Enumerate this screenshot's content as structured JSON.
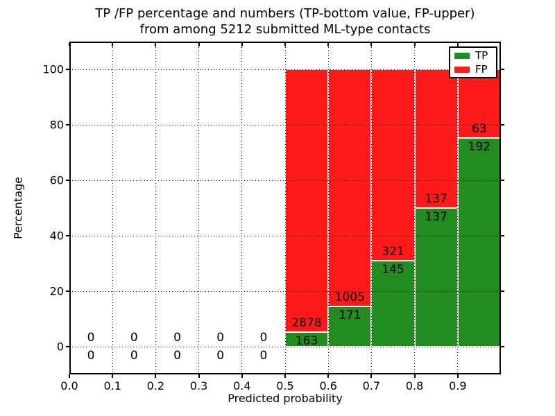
{
  "figure": {
    "title_line1": "TP /FP percentage and numbers (TP-bottom value, FP-upper)",
    "title_line2": "from among 5212 submitted ML-type contacts"
  },
  "axes": {
    "xlabel": "Predicted probability",
    "ylabel": "Percentage",
    "x_tick_labels": [
      "0.0",
      "0.1",
      "0.2",
      "0.3",
      "0.4",
      "0.5",
      "0.6",
      "0.7",
      "0.8",
      "0.9"
    ],
    "x_tick_values": [
      0.0,
      0.1,
      0.2,
      0.3,
      0.4,
      0.5,
      0.6,
      0.7,
      0.8,
      0.9
    ],
    "y_tick_labels": [
      "0",
      "20",
      "40",
      "60",
      "80",
      "100"
    ],
    "y_tick_values": [
      0,
      20,
      40,
      60,
      80,
      100
    ],
    "xlim": [
      0.0,
      1.0
    ],
    "ylim": [
      -10,
      110
    ],
    "grid": true,
    "grid_style": "dotted"
  },
  "legend": {
    "position": "upper-right",
    "entries": [
      {
        "label": "TP",
        "color": "#228B22"
      },
      {
        "label": "FP",
        "color": "#FF1A1A"
      }
    ]
  },
  "colors": {
    "tp_green": "#228B22",
    "fp_red": "#FF1A1A",
    "background": "#FFFFFF",
    "text": "#000000"
  },
  "chart_data": {
    "type": "bar",
    "stacked": true,
    "units": "percent of bin total",
    "title": "TP /FP percentage and numbers (TP-bottom value, FP-upper) from among 5212 submitted ML-type contacts",
    "xlabel": "Predicted probability",
    "ylabel": "Percentage",
    "total_contacts": 5212,
    "bin_width": 0.1,
    "bin_starts": [
      0.0,
      0.1,
      0.2,
      0.3,
      0.4,
      0.5,
      0.6,
      0.7,
      0.8,
      0.9
    ],
    "series": [
      {
        "name": "TP",
        "color": "#228B22",
        "counts": [
          0,
          0,
          0,
          0,
          0,
          163,
          171,
          145,
          137,
          192
        ]
      },
      {
        "name": "FP",
        "color": "#FF1A1A",
        "counts": [
          0,
          0,
          0,
          0,
          0,
          2878,
          1005,
          321,
          137,
          63
        ]
      }
    ],
    "tp_percent_by_bin": [
      0,
      0,
      0,
      0,
      0,
      5.36,
      14.54,
      31.12,
      50.0,
      75.29
    ]
  }
}
